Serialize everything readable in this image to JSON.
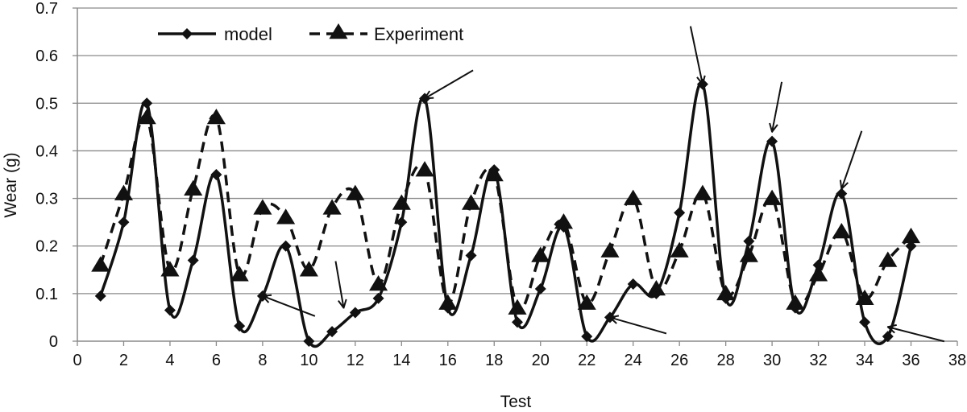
{
  "chart_data": {
    "type": "line",
    "xlabel": "Test",
    "ylabel": "Wear (g)",
    "xlim": [
      0,
      38
    ],
    "ylim": [
      0,
      0.7
    ],
    "x_ticks": [
      0,
      2,
      4,
      6,
      8,
      10,
      12,
      14,
      16,
      18,
      20,
      22,
      24,
      26,
      28,
      30,
      32,
      34,
      36,
      38
    ],
    "y_ticks": [
      0,
      0.1,
      0.2,
      0.3,
      0.4,
      0.5,
      0.6,
      0.7
    ],
    "x_tick_labels": [
      "0",
      "2",
      "4",
      "6",
      "8",
      "10",
      "12",
      "14",
      "16",
      "18",
      "20",
      "22",
      "24",
      "26",
      "28",
      "30",
      "32",
      "34",
      "36",
      "38"
    ],
    "y_tick_labels": [
      "0",
      "0.1",
      "0.2",
      "0.3",
      "0.4",
      "0.5",
      "0.6",
      "0.7"
    ],
    "grid": "horizontal",
    "legend_position": "top-left",
    "x": [
      1,
      2,
      3,
      4,
      5,
      6,
      7,
      8,
      9,
      10,
      11,
      12,
      13,
      14,
      15,
      16,
      17,
      18,
      19,
      20,
      21,
      22,
      23,
      24,
      25,
      26,
      27,
      28,
      29,
      30,
      31,
      32,
      33,
      34,
      35,
      36
    ],
    "series": [
      {
        "name": "model",
        "style": "solid",
        "marker": "diamond",
        "color": "#111111",
        "values": [
          0.095,
          0.25,
          0.5,
          0.065,
          0.17,
          0.35,
          0.032,
          0.095,
          0.2,
          0.0,
          0.02,
          0.06,
          0.09,
          0.25,
          0.51,
          0.07,
          0.18,
          0.36,
          0.04,
          0.11,
          0.24,
          0.01,
          0.05,
          0.12,
          0.1,
          0.27,
          0.54,
          0.09,
          0.21,
          0.42,
          0.07,
          0.16,
          0.31,
          0.04,
          0.01,
          0.2
        ]
      },
      {
        "name": "Experiment",
        "style": "dashed",
        "marker": "triangle",
        "color": "#111111",
        "values": [
          0.16,
          0.31,
          0.47,
          0.15,
          0.32,
          0.47,
          0.14,
          0.28,
          0.26,
          0.15,
          0.28,
          0.31,
          0.12,
          0.29,
          0.36,
          0.08,
          0.29,
          0.35,
          0.07,
          0.18,
          0.25,
          0.08,
          0.19,
          0.3,
          0.11,
          0.19,
          0.31,
          0.1,
          0.18,
          0.3,
          0.08,
          0.14,
          0.23,
          0.09,
          0.17,
          0.22
        ]
      }
    ],
    "annotations": [
      {
        "type": "arrow",
        "target_x": 8,
        "target_y": 0.095
      },
      {
        "type": "arrow",
        "target_x": 11.5,
        "target_y": 0.07
      },
      {
        "type": "arrow",
        "target_x": 15,
        "target_y": 0.51
      },
      {
        "type": "arrow",
        "target_x": 23,
        "target_y": 0.05
      },
      {
        "type": "arrow",
        "target_x": 27,
        "target_y": 0.54
      },
      {
        "type": "arrow",
        "target_x": 30,
        "target_y": 0.44
      },
      {
        "type": "arrow",
        "target_x": 33,
        "target_y": 0.32
      },
      {
        "type": "arrow",
        "target_x": 35,
        "target_y": 0.03
      }
    ]
  }
}
